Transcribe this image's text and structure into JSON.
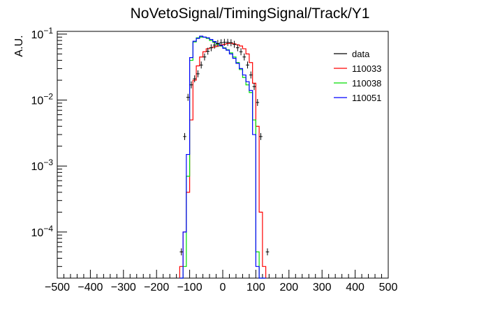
{
  "chart_data": {
    "type": "line",
    "title": "NoVetoSignal/TimingSignal/Track/Y1",
    "xlabel": "",
    "ylabel": "A.U.",
    "xlim": [
      -500,
      500
    ],
    "ylim": [
      2e-05,
      0.11
    ],
    "log_y": true,
    "grid": false,
    "legend_placement": "top-right",
    "x_ticks": [
      -500,
      -400,
      -300,
      -200,
      -100,
      0,
      100,
      200,
      300,
      400,
      500
    ],
    "y_ticks": [
      {
        "value": 0.0001,
        "base": "10",
        "exp": "-4"
      },
      {
        "value": 0.001,
        "base": "10",
        "exp": "-3"
      },
      {
        "value": 0.01,
        "base": "10",
        "exp": "-2"
      },
      {
        "value": 0.1,
        "base": "10",
        "exp": "-1"
      }
    ],
    "bin_edges": [
      -130,
      -120,
      -110,
      -100,
      -90,
      -80,
      -70,
      -60,
      -50,
      -40,
      -30,
      -20,
      -10,
      0,
      10,
      20,
      30,
      40,
      50,
      60,
      70,
      80,
      90,
      100,
      110,
      120,
      130
    ],
    "data": {
      "name": "data",
      "color": "#000000",
      "points": [
        {
          "x": -125,
          "y": 5e-05
        },
        {
          "x": -115,
          "y": 0.0028
        },
        {
          "x": -105,
          "y": 0.011
        },
        {
          "x": -95,
          "y": 0.017
        },
        {
          "x": -85,
          "y": 0.021
        },
        {
          "x": -75,
          "y": 0.025
        },
        {
          "x": -65,
          "y": 0.034
        },
        {
          "x": -55,
          "y": 0.045
        },
        {
          "x": -45,
          "y": 0.055
        },
        {
          "x": -35,
          "y": 0.062
        },
        {
          "x": -25,
          "y": 0.068
        },
        {
          "x": -15,
          "y": 0.072
        },
        {
          "x": -5,
          "y": 0.074
        },
        {
          "x": 5,
          "y": 0.075
        },
        {
          "x": 15,
          "y": 0.075
        },
        {
          "x": 25,
          "y": 0.074
        },
        {
          "x": 35,
          "y": 0.07
        },
        {
          "x": 45,
          "y": 0.062
        },
        {
          "x": 55,
          "y": 0.054
        },
        {
          "x": 65,
          "y": 0.045
        },
        {
          "x": 75,
          "y": 0.034
        },
        {
          "x": 85,
          "y": 0.024
        },
        {
          "x": 95,
          "y": 0.016
        },
        {
          "x": 105,
          "y": 0.0092
        },
        {
          "x": 115,
          "y": 0.0028
        },
        {
          "x": 135,
          "y": 5e-05
        }
      ]
    },
    "series": [
      {
        "name": "110033",
        "color": "#ff0000",
        "values": [
          3e-05,
          0.0001,
          0.0004,
          0.005,
          0.02,
          0.033,
          0.045,
          0.054,
          0.06,
          0.062,
          0.064,
          0.066,
          0.068,
          0.07,
          0.072,
          0.073,
          0.071,
          0.069,
          0.066,
          0.06,
          0.05,
          0.037,
          0.018,
          0.004,
          0.0002,
          3e-05
        ]
      },
      {
        "name": "110038",
        "color": "#00dd00",
        "values": [
          1.5e-05,
          3e-05,
          0.0007,
          0.04,
          0.076,
          0.088,
          0.09,
          0.09,
          0.086,
          0.08,
          0.075,
          0.07,
          0.066,
          0.062,
          0.058,
          0.052,
          0.045,
          0.037,
          0.029,
          0.022,
          0.017,
          0.013,
          0.005,
          5e-05,
          2e-05,
          1.5e-05
        ]
      },
      {
        "name": "110051",
        "color": "#0000ff",
        "values": [
          2e-05,
          0.0001,
          0.0015,
          0.044,
          0.078,
          0.086,
          0.093,
          0.09,
          0.088,
          0.083,
          0.077,
          0.072,
          0.067,
          0.061,
          0.057,
          0.05,
          0.043,
          0.036,
          0.03,
          0.024,
          0.019,
          0.014,
          0.003,
          3e-05,
          1.5e-05,
          1.5e-05
        ]
      }
    ]
  }
}
